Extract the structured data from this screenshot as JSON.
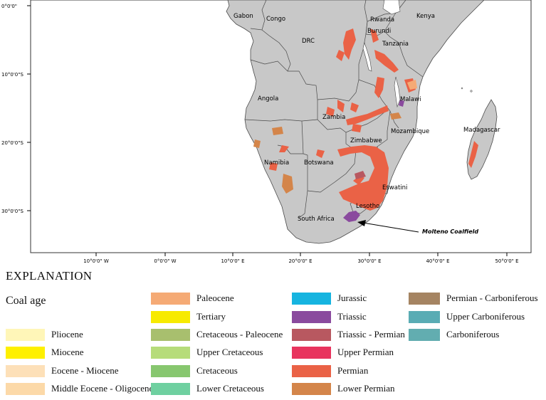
{
  "map": {
    "lat_labels": [
      "0°0'0\"",
      "10°0'0\"S",
      "20°0'0\"S",
      "30°0'0\"S"
    ],
    "lon_labels": [
      "10°0'0\" W",
      "0°0'0\" W",
      "10°0'0\" E",
      "20°0'0\" E",
      "30°0'0\" E",
      "40°0'0\" E",
      "50°0'0\" E"
    ],
    "countries": {
      "gabon": "Gabon",
      "congo": "Congo",
      "rwanda": "Rwanda",
      "burundi": "Burundi",
      "kenya": "Kenya",
      "drc": "DRC",
      "tanzania": "Tanzania",
      "angola": "Angola",
      "malawi": "Malawi",
      "zambia": "Zambia",
      "mozambique": "Mozambique",
      "madagascar": "Madagascar",
      "zimbabwe": "Zimbabwe",
      "namibia": "Namibia",
      "botswana": "Botswana",
      "eswatini": "Eswatini",
      "lesotho": "Lesotho",
      "south_africa": "South Africa"
    },
    "callout": "Molteno Coalfield",
    "colors": {
      "land": "#c8c8c8",
      "border": "#4a4a4a",
      "permian": "#ea6246",
      "triassic": "#8a4a9e",
      "triassic_permian": "#b85860",
      "lower_permian": "#d4854a",
      "paleocene": "#f5aa75"
    }
  },
  "legend": {
    "title": "EXPLANATION",
    "subtitle": "Coal age",
    "items": [
      {
        "label": "Pliocene",
        "color": "#fff6b8"
      },
      {
        "label": "Miocene",
        "color": "#fef000"
      },
      {
        "label": "Eocene - Miocene",
        "color": "#fde0b8"
      },
      {
        "label": "Middle Eocene - Oligocene",
        "color": "#fcd9a8"
      },
      {
        "label": "Paleocene",
        "color": "#f5aa75"
      },
      {
        "label": "Tertiary",
        "color": "#f7ea00"
      },
      {
        "label": "Cretaceous - Paleocene",
        "color": "#a8bf6e"
      },
      {
        "label": "Upper Cretaceous",
        "color": "#b6dc7a"
      },
      {
        "label": "Cretaceous",
        "color": "#87c76f"
      },
      {
        "label": "Lower Cretaceous",
        "color": "#6fd0a0"
      },
      {
        "label": "Jurassic",
        "color": "#16b4e0"
      },
      {
        "label": "Triassic",
        "color": "#8a4a9e"
      },
      {
        "label": "Triassic - Permian",
        "color": "#b85860"
      },
      {
        "label": "Upper Permian",
        "color": "#e8345e"
      },
      {
        "label": "Permian",
        "color": "#ea6246"
      },
      {
        "label": "Lower Permian",
        "color": "#d4854a"
      },
      {
        "label": "Permian - Carboniferous",
        "color": "#a58462"
      },
      {
        "label": "Upper Carboniferous",
        "color": "#5aacb4"
      },
      {
        "label": "Carboniferous",
        "color": "#62adb0"
      }
    ]
  }
}
